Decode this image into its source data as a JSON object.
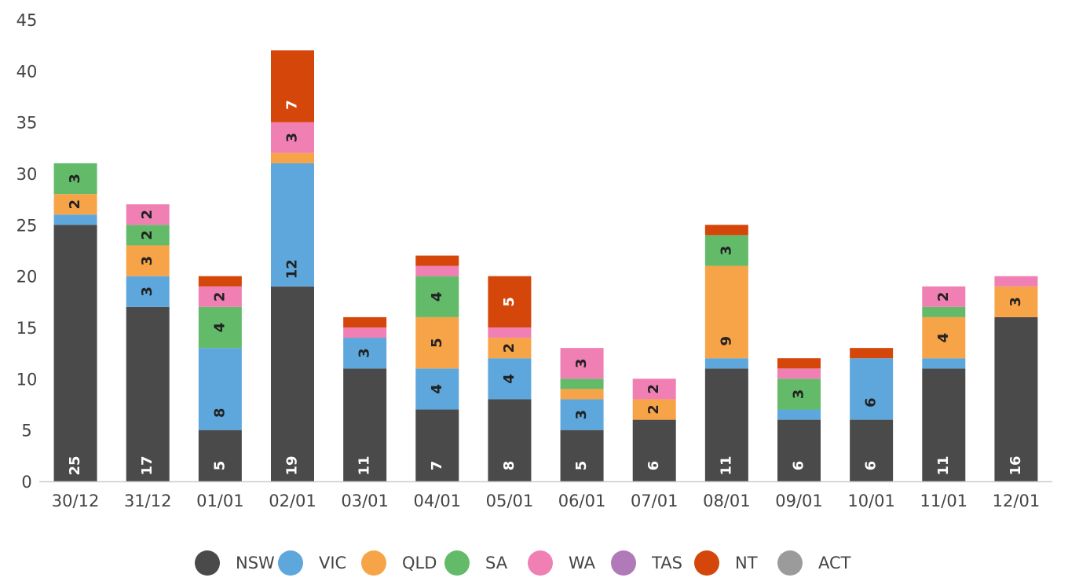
{
  "chart_data": {
    "type": "bar",
    "stacked": true,
    "categories": [
      "30/12",
      "31/12",
      "01/01",
      "02/01",
      "03/01",
      "04/01",
      "05/01",
      "06/01",
      "07/01",
      "08/01",
      "09/01",
      "10/01",
      "11/01",
      "12/01"
    ],
    "ylim": [
      0,
      45
    ],
    "yticks": [
      0,
      5,
      10,
      15,
      20,
      25,
      30,
      35,
      40,
      45
    ],
    "legend_position": "bottom",
    "grid": false,
    "series": [
      {
        "name": "NSW",
        "color": "#4a4a4a",
        "label_color": "#ffffff",
        "values": [
          25,
          17,
          5,
          19,
          11,
          7,
          8,
          5,
          6,
          11,
          6,
          6,
          11,
          16
        ]
      },
      {
        "name": "VIC",
        "color": "#5ea7dc",
        "label_color": "#222222",
        "values": [
          1,
          3,
          8,
          12,
          3,
          4,
          4,
          3,
          0,
          1,
          1,
          6,
          1,
          0
        ]
      },
      {
        "name": "QLD",
        "color": "#f7a449",
        "label_color": "#222222",
        "values": [
          2,
          3,
          0,
          1,
          0,
          5,
          2,
          1,
          2,
          9,
          0,
          0,
          4,
          3
        ]
      },
      {
        "name": "SA",
        "color": "#63bb6a",
        "label_color": "#222222",
        "values": [
          3,
          2,
          4,
          0,
          0,
          4,
          0,
          1,
          0,
          3,
          3,
          0,
          1,
          0
        ]
      },
      {
        "name": "WA",
        "color": "#f07fb4",
        "label_color": "#222222",
        "values": [
          0,
          2,
          2,
          3,
          1,
          1,
          1,
          3,
          2,
          0,
          1,
          0,
          2,
          1
        ]
      },
      {
        "name": "TAS",
        "color": "#b07ab8",
        "label_color": "#222222",
        "values": [
          0,
          0,
          0,
          0,
          0,
          0,
          0,
          0,
          0,
          0,
          0,
          0,
          0,
          0
        ]
      },
      {
        "name": "NT",
        "color": "#d44609",
        "label_color": "#ffffff",
        "values": [
          0,
          0,
          1,
          7,
          1,
          1,
          5,
          0,
          0,
          1,
          1,
          1,
          0,
          0
        ]
      },
      {
        "name": "ACT",
        "color": "#9b9b9b",
        "label_color": "#222222",
        "values": [
          0,
          0,
          0,
          0,
          0,
          0,
          0,
          0,
          0,
          0,
          0,
          0,
          0,
          0
        ]
      }
    ]
  }
}
